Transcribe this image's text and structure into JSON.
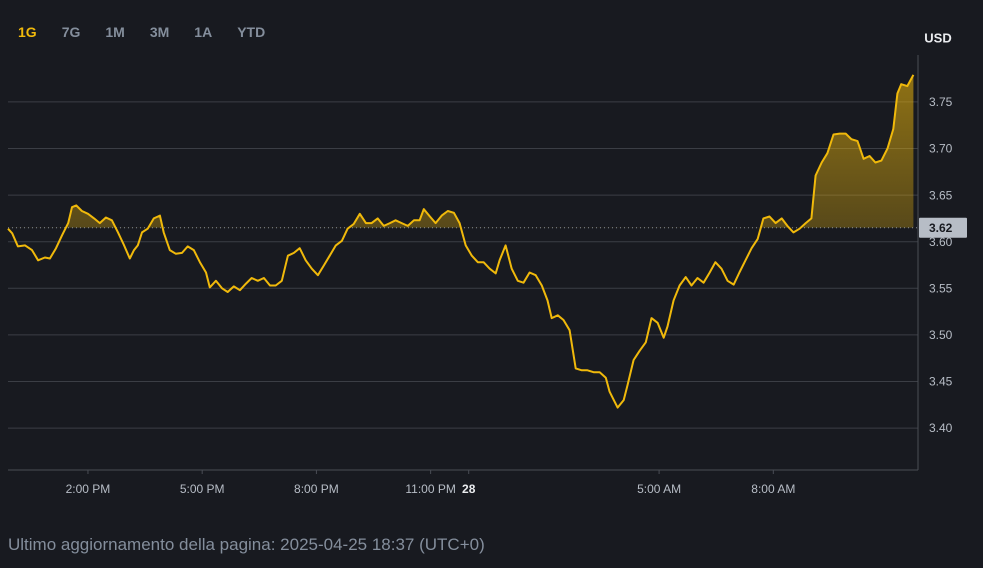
{
  "range_tabs": {
    "options": [
      "1G",
      "7G",
      "1M",
      "3M",
      "1A",
      "YTD"
    ],
    "active": 0
  },
  "chart_data": {
    "type": "line",
    "unit_label": "USD",
    "color": "#f0b90b",
    "grid": true,
    "xlim": [
      11.9,
      35.8
    ],
    "xticks": [
      {
        "value": 14,
        "label": "2:00 PM"
      },
      {
        "value": 17,
        "label": "5:00 PM"
      },
      {
        "value": 20,
        "label": "8:00 PM"
      },
      {
        "value": 23,
        "label": "11:00 PM"
      },
      {
        "value": 24,
        "label": "28"
      },
      {
        "value": 29,
        "label": "5:00 AM"
      },
      {
        "value": 32,
        "label": "8:00 AM"
      }
    ],
    "ylim": [
      3.355,
      3.795
    ],
    "yticks": [
      {
        "value": 3.4,
        "label": "3.40"
      },
      3.45,
      {
        "value": 3.5,
        "label": "3.50"
      },
      3.55,
      {
        "value": 3.6,
        "label": "3.60"
      },
      3.65,
      {
        "value": 3.7,
        "label": "3.70"
      },
      3.75
    ],
    "reference_price": {
      "value": 3.615,
      "label": "3.62"
    },
    "x": [
      11.9,
      12.01,
      12.16,
      12.35,
      12.53,
      12.69,
      12.87,
      13.0,
      13.16,
      13.32,
      13.48,
      13.58,
      13.69,
      13.84,
      14.0,
      14.16,
      14.31,
      14.47,
      14.63,
      14.79,
      14.94,
      15.1,
      15.21,
      15.31,
      15.42,
      15.57,
      15.73,
      15.89,
      15.99,
      16.15,
      16.31,
      16.47,
      16.62,
      16.78,
      16.94,
      17.1,
      17.2,
      17.36,
      17.52,
      17.67,
      17.83,
      17.99,
      18.15,
      18.3,
      18.46,
      18.62,
      18.78,
      18.93,
      19.09,
      19.25,
      19.41,
      19.56,
      19.72,
      19.88,
      20.04,
      20.19,
      20.35,
      20.51,
      20.67,
      20.82,
      20.98,
      21.14,
      21.3,
      21.45,
      21.61,
      21.77,
      21.93,
      22.08,
      22.24,
      22.4,
      22.56,
      22.71,
      22.82,
      22.98,
      23.13,
      23.29,
      23.45,
      23.61,
      23.76,
      23.92,
      24.08,
      24.24,
      24.39,
      24.55,
      24.71,
      24.81,
      24.97,
      25.13,
      25.29,
      25.44,
      25.6,
      25.76,
      25.92,
      26.07,
      26.18,
      26.34,
      26.49,
      26.65,
      26.81,
      26.97,
      27.12,
      27.28,
      27.44,
      27.6,
      27.7,
      27.81,
      27.91,
      28.07,
      28.17,
      28.33,
      28.49,
      28.65,
      28.8,
      28.96,
      29.12,
      29.22,
      29.38,
      29.54,
      29.7,
      29.85,
      30.01,
      30.17,
      30.33,
      30.48,
      30.64,
      30.8,
      30.96,
      31.11,
      31.27,
      31.43,
      31.59,
      31.74,
      31.9,
      32.06,
      32.22,
      32.37,
      32.53,
      32.69,
      32.85,
      33.0,
      33.11,
      33.27,
      33.42,
      33.58,
      33.74,
      33.9,
      34.05,
      34.21,
      34.37,
      34.53,
      34.68,
      34.84,
      35.0,
      35.15,
      35.26,
      35.36,
      35.52,
      35.68
    ],
    "values": [
      3.614,
      3.609,
      3.595,
      3.596,
      3.591,
      3.58,
      3.583,
      3.582,
      3.593,
      3.607,
      3.62,
      3.637,
      3.639,
      3.633,
      3.63,
      3.625,
      3.62,
      3.626,
      3.623,
      3.61,
      3.597,
      3.582,
      3.591,
      3.596,
      3.61,
      3.614,
      3.625,
      3.628,
      3.61,
      3.591,
      3.587,
      3.588,
      3.595,
      3.591,
      3.578,
      3.567,
      3.551,
      3.558,
      3.55,
      3.546,
      3.552,
      3.548,
      3.555,
      3.561,
      3.558,
      3.561,
      3.553,
      3.553,
      3.558,
      3.585,
      3.588,
      3.593,
      3.58,
      3.571,
      3.564,
      3.574,
      3.585,
      3.596,
      3.601,
      3.614,
      3.619,
      3.63,
      3.62,
      3.62,
      3.625,
      3.617,
      3.62,
      3.623,
      3.62,
      3.617,
      3.623,
      3.623,
      3.635,
      3.627,
      3.62,
      3.628,
      3.633,
      3.631,
      3.62,
      3.596,
      3.585,
      3.578,
      3.578,
      3.571,
      3.566,
      3.58,
      3.596,
      3.571,
      3.558,
      3.556,
      3.567,
      3.564,
      3.553,
      3.537,
      3.518,
      3.521,
      3.516,
      3.505,
      3.464,
      3.462,
      3.462,
      3.46,
      3.46,
      3.454,
      3.439,
      3.43,
      3.422,
      3.43,
      3.446,
      3.473,
      3.483,
      3.492,
      3.518,
      3.513,
      3.497,
      3.509,
      3.537,
      3.553,
      3.562,
      3.553,
      3.561,
      3.556,
      3.567,
      3.578,
      3.571,
      3.558,
      3.554,
      3.567,
      3.58,
      3.593,
      3.603,
      3.625,
      3.627,
      3.62,
      3.625,
      3.617,
      3.61,
      3.614,
      3.62,
      3.625,
      3.671,
      3.685,
      3.695,
      3.715,
      3.716,
      3.716,
      3.71,
      3.708,
      3.689,
      3.692,
      3.685,
      3.687,
      3.7,
      3.721,
      3.759,
      3.769,
      3.767,
      3.779
    ]
  },
  "footer": "Ultimo aggiornamento della pagina: 2025-04-25 18:37 (UTC+0)"
}
